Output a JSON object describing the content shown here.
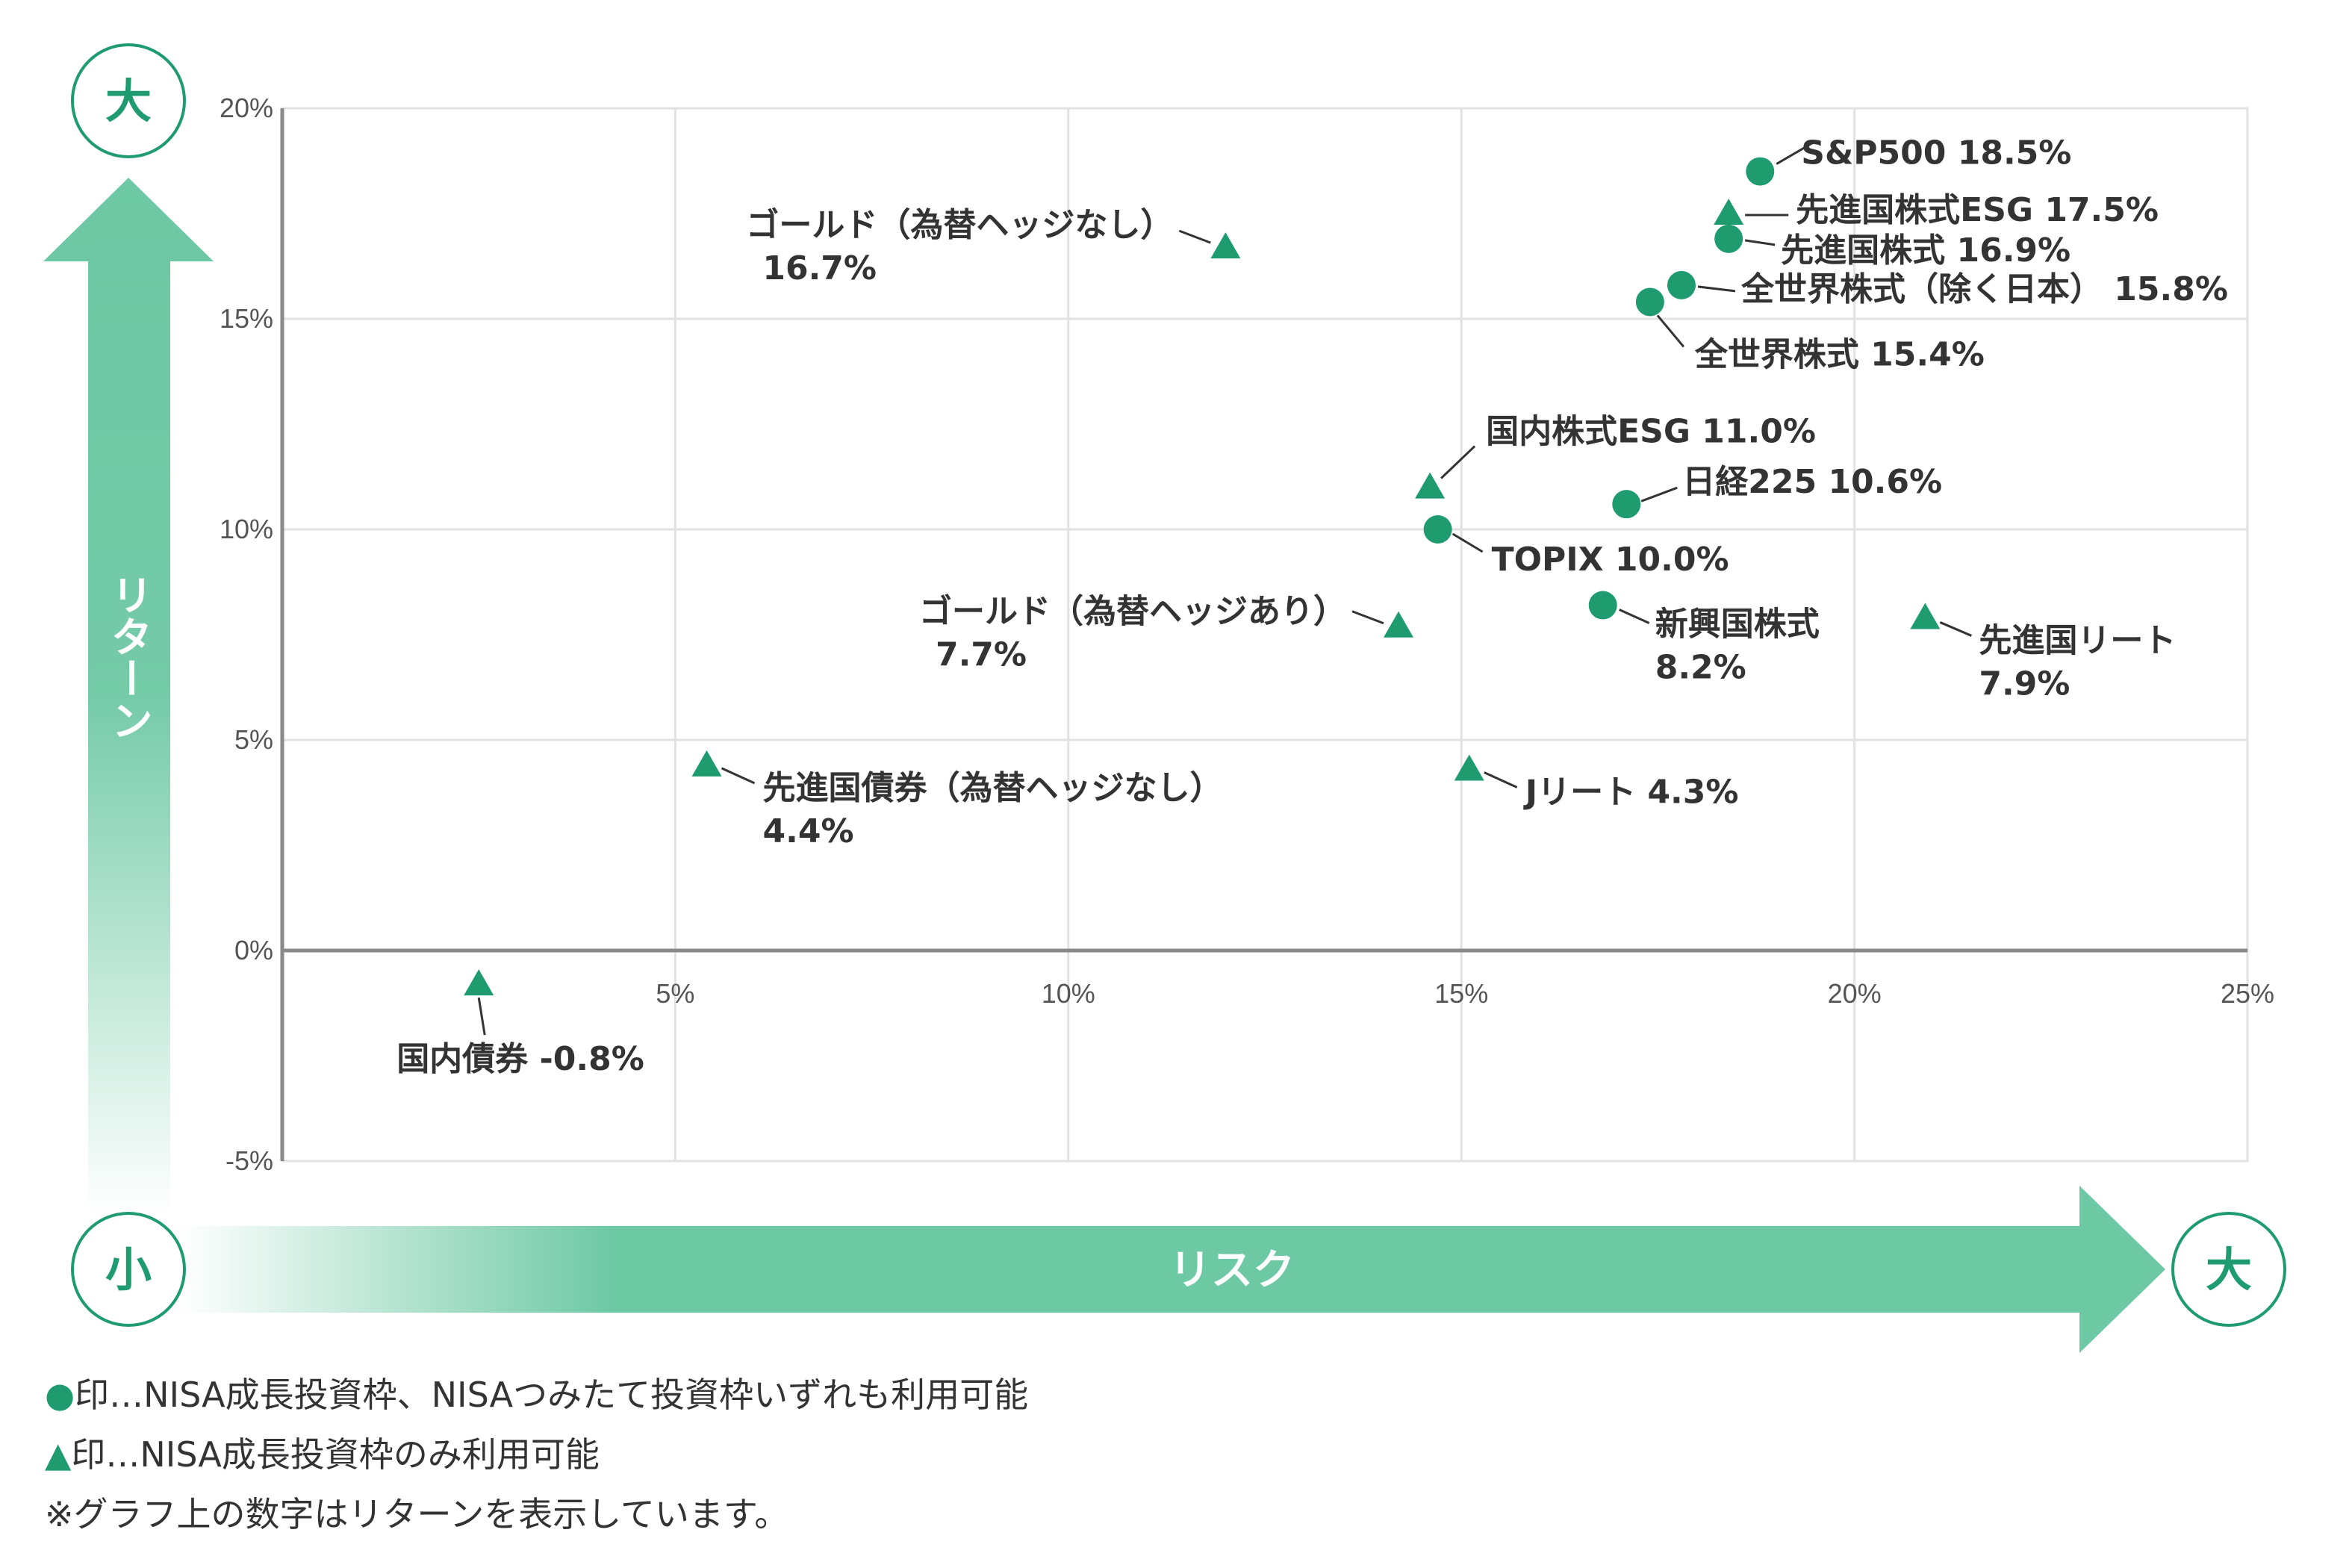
{
  "chart_data": {
    "type": "scatter",
    "xlim": [
      0,
      25
    ],
    "ylim": [
      -5,
      20
    ],
    "x_ticks": [
      "5%",
      "10%",
      "15%",
      "20%",
      "25%"
    ],
    "y_ticks": [
      "20%",
      "15%",
      "10%",
      "5%",
      "0%",
      "-5%"
    ],
    "grid": true,
    "y_axis_label": "リターン",
    "x_axis_label": "リスク",
    "y_top_badge": "大",
    "origin_badge": "小",
    "x_right_badge": "大",
    "points": [
      {
        "label": "S&P500 18.5%",
        "x": 18.8,
        "y": 18.5,
        "marker": "circle"
      },
      {
        "label": "先進国株式ESG 17.5%",
        "x": 18.4,
        "y": 17.5,
        "marker": "triangle"
      },
      {
        "label": "先進国株式 16.9%",
        "x": 18.4,
        "y": 16.9,
        "marker": "circle"
      },
      {
        "label": "全世界株式（除く日本） 15.8%",
        "x": 17.8,
        "y": 15.8,
        "marker": "circle"
      },
      {
        "label": "全世界株式 15.4%",
        "x": 17.4,
        "y": 15.4,
        "marker": "circle"
      },
      {
        "label": "ゴールド（為替ヘッジなし）",
        "label2": "16.7%",
        "x": 12.0,
        "y": 16.7,
        "marker": "triangle"
      },
      {
        "label": "国内株式ESG 11.0%",
        "x": 14.6,
        "y": 11.0,
        "marker": "triangle"
      },
      {
        "label": "日経225 10.6%",
        "x": 17.1,
        "y": 10.6,
        "marker": "circle"
      },
      {
        "label": "TOPIX 10.0%",
        "x": 14.7,
        "y": 10.0,
        "marker": "circle"
      },
      {
        "label": "ゴールド（為替ヘッジあり）",
        "label2": "7.7%",
        "x": 14.2,
        "y": 7.7,
        "marker": "triangle"
      },
      {
        "label": "新興国株式",
        "label2": "8.2%",
        "x": 16.8,
        "y": 8.2,
        "marker": "circle"
      },
      {
        "label": "先進国リート",
        "label2": "7.9%",
        "x": 20.9,
        "y": 7.9,
        "marker": "triangle"
      },
      {
        "label": "先進国債券（為替ヘッジなし）",
        "label2": "4.4%",
        "x": 5.4,
        "y": 4.4,
        "marker": "triangle"
      },
      {
        "label": "Jリート 4.3%",
        "x": 15.1,
        "y": 4.3,
        "marker": "triangle"
      },
      {
        "label": "国内債券 -0.8%",
        "x": 2.5,
        "y": -0.8,
        "marker": "triangle"
      }
    ]
  },
  "colors": {
    "marker": "#1e9b6f",
    "arrow": "#6dc8a4",
    "grid": "#e2e2e2",
    "zero_line": "#8a8a8a"
  },
  "legend": {
    "circle_mark": "●",
    "circle_text": "印…NISA成長投資枠、NISAつみたて投資枠いずれも利用可能",
    "triangle_mark": "▲",
    "triangle_text": "印…NISA成長投資枠のみ利用可能",
    "note": "※グラフ上の数字はリターンを表示しています。"
  }
}
